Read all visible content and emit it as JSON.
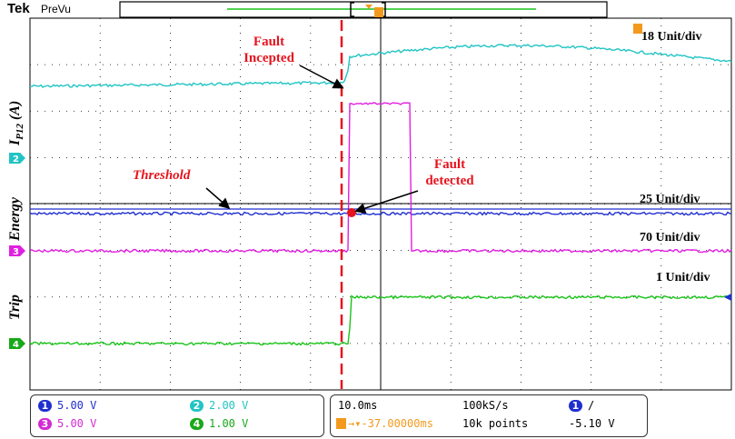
{
  "header": {
    "brand": "Tek",
    "mode": "PreVu"
  },
  "units": {
    "ch2": "18 Unit/div",
    "ch1": "25 Unit/div",
    "ch3": "70 Unit/div",
    "ch4": "1 Unit/div"
  },
  "annotations": {
    "fault_incepted_1": "Fault",
    "fault_incepted_2": "Incepted",
    "fault_detected_1": "Fault",
    "fault_detected_2": "detected",
    "threshold": "Threshold"
  },
  "axis_labels": {
    "current": "I",
    "current_sub": "P12",
    "current_unit": " (A)",
    "energy": "Energy",
    "trip": "Trip"
  },
  "channels": [
    {
      "num": "1",
      "value": "5.00 V",
      "color": "#1f2fd0"
    },
    {
      "num": "2",
      "value": "2.00 V",
      "color": "#21c4c4"
    },
    {
      "num": "3",
      "value": "5.00 V",
      "color": "#d22ad2"
    },
    {
      "num": "4",
      "value": "1.00 V",
      "color": "#19a819"
    }
  ],
  "timebase": {
    "scale": "10.0ms",
    "rate": "100kS/s",
    "trigger_pos": "-37.00000ms",
    "points": "10k points",
    "trig_channel": "1",
    "trig_slope": "/",
    "trig_level": "-5.10 V"
  },
  "colors": {
    "ch1": "#1f2fd0",
    "ch2": "#21c4c4",
    "ch3": "#e020e0",
    "ch4": "#19c419",
    "marker": "#e6141e",
    "trigger": "#f39a1e"
  }
}
